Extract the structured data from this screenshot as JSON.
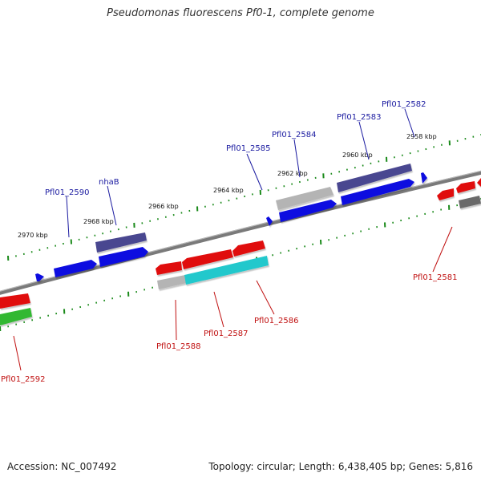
{
  "header": {
    "title": "Pseudomonas fluorescens Pf0-1, complete genome"
  },
  "footer": {
    "accession": "Accession: NC_007492",
    "stats": "Topology: circular; Length: 6,438,405 bp; Genes: 5,816"
  },
  "colors": {
    "backbone": "#7a7a7a",
    "tick": "#1a8a1a",
    "forward_gene": "#1010e0",
    "forward_highlight": "#4a4690",
    "reverse_gene": "#e01010",
    "reverse_highlight_cyan": "#20c8cc",
    "reverse_green": "#30b830",
    "gray_gene": "#b4b4b4",
    "dark_gray_gene": "#6a6a6a",
    "label_forward": "#1a1aa0",
    "label_reverse": "#c01010"
  },
  "scale_labels": [
    "2958 kbp",
    "2960 kbp",
    "2962 kbp",
    "2964 kbp",
    "2966 kbp",
    "2968 kbp",
    "2970 kbp"
  ],
  "forward_labels": [
    "Pfl01_2582",
    "Pfl01_2583",
    "Pfl01_2584",
    "Pfl01_2585",
    "nhaB",
    "Pfl01_2590"
  ],
  "reverse_labels": [
    "Pfl01_2581",
    "Pfl01_2586",
    "Pfl01_2587",
    "Pfl01_2588",
    "Pfl01_2592"
  ]
}
